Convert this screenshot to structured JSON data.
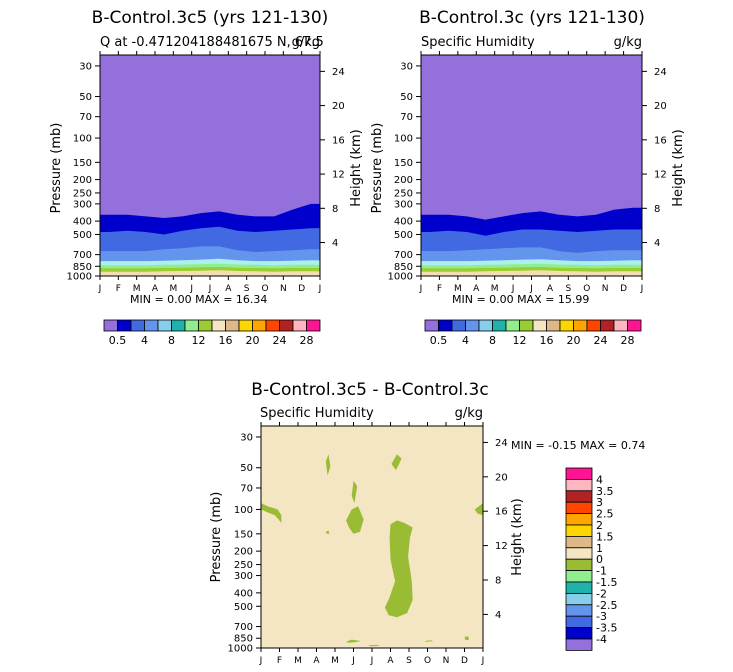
{
  "chart_data": [
    {
      "type": "contour",
      "title": "B-Control.3c5 (yrs 121-130)",
      "subtitle_left": "Q at -0.471204188481675 N, 67.5",
      "subtitle_right": "g/kg",
      "ylabel": "Pressure (mb)",
      "ylabel_right": "Height (km)",
      "minmax_text": "MIN =     0.00 MAX =    16.34",
      "bands": [
        {
          "p": [
            360,
            360,
            370,
            380,
            370,
            350,
            340,
            360,
            370,
            370,
            330,
            300
          ],
          "color": "#0000cd"
        },
        {
          "p": [
            480,
            470,
            480,
            500,
            470,
            450,
            440,
            470,
            480,
            470,
            460,
            450
          ],
          "color": "#4169e1"
        },
        {
          "p": [
            660,
            660,
            660,
            640,
            630,
            610,
            610,
            650,
            670,
            660,
            650,
            640
          ],
          "color": "#6495ed"
        },
        {
          "p": [
            780,
            780,
            780,
            775,
            770,
            760,
            750,
            770,
            780,
            780,
            775,
            770
          ],
          "color": "#afeeee"
        },
        {
          "p": [
            835,
            835,
            835,
            830,
            825,
            820,
            815,
            825,
            830,
            835,
            830,
            830
          ],
          "color": "#90ee90"
        },
        {
          "p": [
            880,
            880,
            880,
            875,
            870,
            865,
            860,
            870,
            875,
            880,
            875,
            875
          ],
          "color": "#9acd32"
        },
        {
          "p": [
            930,
            930,
            930,
            925,
            920,
            915,
            910,
            920,
            925,
            930,
            925,
            925
          ],
          "color": "#f5deb3"
        }
      ],
      "base_color": "#9370db"
    },
    {
      "type": "contour",
      "title": "B-Control.3c (yrs 121-130)",
      "subtitle_left": "Specific Humidity",
      "subtitle_right": "g/kg",
      "ylabel": "Pressure (mb)",
      "ylabel_right": "Height (km)",
      "minmax_text": "MIN =     0.00 MAX =    15.99",
      "bands": [
        {
          "p": [
            360,
            360,
            370,
            390,
            370,
            350,
            340,
            360,
            370,
            360,
            330,
            320
          ],
          "color": "#0000cd"
        },
        {
          "p": [
            480,
            470,
            480,
            510,
            480,
            460,
            460,
            470,
            480,
            470,
            460,
            460
          ],
          "color": "#4169e1"
        },
        {
          "p": [
            660,
            660,
            650,
            640,
            630,
            620,
            620,
            660,
            680,
            660,
            650,
            650
          ],
          "color": "#6495ed"
        },
        {
          "p": [
            780,
            780,
            780,
            775,
            770,
            760,
            755,
            770,
            780,
            780,
            775,
            770
          ],
          "color": "#afeeee"
        },
        {
          "p": [
            835,
            835,
            835,
            830,
            825,
            820,
            815,
            825,
            830,
            835,
            830,
            830
          ],
          "color": "#90ee90"
        },
        {
          "p": [
            880,
            880,
            880,
            875,
            870,
            865,
            860,
            870,
            875,
            880,
            875,
            875
          ],
          "color": "#9acd32"
        },
        {
          "p": [
            930,
            930,
            930,
            925,
            920,
            915,
            910,
            920,
            925,
            930,
            925,
            925
          ],
          "color": "#f5deb3"
        }
      ],
      "base_color": "#9370db"
    },
    {
      "type": "contour",
      "title": "B-Control.3c5 - B-Control.3c",
      "subtitle_left": "Specific Humidity",
      "subtitle_right": "g/kg",
      "ylabel": "Pressure (mb)",
      "ylabel_right": "Height (km)",
      "minmax_text": "MIN =    -0.15 MAX =     0.74",
      "base_color": "#f5e6c3",
      "patches": [
        {
          "color": "#9abc35",
          "pts": [
            [
              3.5,
              45
            ],
            [
              3.65,
              40
            ],
            [
              3.75,
              49
            ],
            [
              3.6,
              57
            ]
          ]
        },
        {
          "color": "#9abc35",
          "pts": [
            [
              7.05,
              47
            ],
            [
              7.35,
              40
            ],
            [
              7.6,
              43
            ],
            [
              7.3,
              52
            ]
          ]
        },
        {
          "color": "#9abc35",
          "pts": [
            [
              5.0,
              62
            ],
            [
              5.2,
              68
            ],
            [
              5.05,
              90
            ],
            [
              4.9,
              80
            ]
          ]
        },
        {
          "color": "#9abc35",
          "pts": [
            [
              0,
              90
            ],
            [
              0.35,
              95
            ],
            [
              0.9,
              100
            ],
            [
              1.1,
              110
            ],
            [
              1.1,
              125
            ],
            [
              0.75,
              110
            ],
            [
              0.35,
              105
            ],
            [
              0,
              100
            ]
          ]
        },
        {
          "color": "#9abc35",
          "pts": [
            [
              3.5,
              145
            ],
            [
              3.65,
              142
            ],
            [
              3.7,
              150
            ],
            [
              3.55,
              150
            ]
          ]
        },
        {
          "color": "#9abc35",
          "pts": [
            [
              4.6,
              120
            ],
            [
              4.9,
              100
            ],
            [
              5.25,
              95
            ],
            [
              5.55,
              118
            ],
            [
              5.35,
              145
            ],
            [
              5.0,
              150
            ],
            [
              4.75,
              135
            ]
          ]
        },
        {
          "color": "#9abc35",
          "pts": [
            [
              11.55,
              100
            ],
            [
              12,
              90
            ],
            [
              12,
              110
            ],
            [
              11.7,
              107
            ]
          ]
        },
        {
          "color": "#9abc35",
          "pts": [
            [
              6.7,
              510
            ],
            [
              6.95,
              430
            ],
            [
              7.25,
              330
            ],
            [
              7.0,
              230
            ],
            [
              6.95,
              160
            ],
            [
              7.0,
              128
            ],
            [
              7.35,
              120
            ],
            [
              7.75,
              125
            ],
            [
              8.2,
              135
            ],
            [
              8.05,
              160
            ],
            [
              7.95,
              220
            ],
            [
              8.15,
              330
            ],
            [
              8.2,
              450
            ],
            [
              7.9,
              560
            ],
            [
              7.35,
              600
            ],
            [
              6.9,
              580
            ]
          ]
        },
        {
          "color": "#9abc35",
          "pts": [
            [
              4.6,
              900
            ],
            [
              4.9,
              870
            ],
            [
              5.4,
              890
            ],
            [
              5.1,
              910
            ],
            [
              4.7,
              915
            ]
          ]
        },
        {
          "color": "#9abc35",
          "pts": [
            [
              8.85,
              890
            ],
            [
              9.2,
              880
            ],
            [
              9.3,
              895
            ],
            [
              8.9,
              900
            ]
          ]
        },
        {
          "color": "#9abc35",
          "pts": [
            [
              11.0,
              830
            ],
            [
              11.2,
              825
            ],
            [
              11.25,
              870
            ],
            [
              11.05,
              880
            ]
          ]
        },
        {
          "color": "#9abc35",
          "pts": [
            [
              5.8,
              955
            ],
            [
              6.3,
              950
            ],
            [
              6.4,
              965
            ],
            [
              5.9,
              970
            ]
          ]
        }
      ]
    }
  ],
  "months": [
    "J",
    "F",
    "M",
    "A",
    "M",
    "J",
    "J",
    "A",
    "S",
    "O",
    "N",
    "D",
    "J"
  ],
  "pressure_ticks": [
    30,
    50,
    70,
    100,
    150,
    200,
    250,
    300,
    400,
    500,
    700,
    850,
    1000
  ],
  "height_ticks": [
    24,
    20,
    16,
    12,
    8,
    4
  ],
  "colorbar_top": {
    "colors": [
      "#9370db",
      "#0000cd",
      "#4169e1",
      "#6495ed",
      "#87ceeb",
      "#20b2aa",
      "#90ee90",
      "#9acd32",
      "#f5e6c3",
      "#deb887",
      "#ffd700",
      "#ffa500",
      "#ff4500",
      "#b22222",
      "#ffb6c1",
      "#ff1493"
    ],
    "labels": [
      "0.5",
      "4",
      "8",
      "12",
      "16",
      "20",
      "24",
      "28"
    ]
  },
  "colorbar_diff": {
    "colors": [
      "#ff1493",
      "#ffb6c1",
      "#b22222",
      "#ff4500",
      "#ffa500",
      "#ffd700",
      "#deb887",
      "#f5e6c3",
      "#9abc35",
      "#90ee90",
      "#20b2aa",
      "#87ceeb",
      "#6495ed",
      "#4169e1",
      "#0000cd",
      "#9370db"
    ],
    "labels": [
      "4",
      "3.5",
      "3",
      "2.5",
      "2",
      "1.5",
      "1",
      "0",
      "-1",
      "-1.5",
      "-2",
      "-2.5",
      "-3",
      "-3.5",
      "-4"
    ]
  }
}
